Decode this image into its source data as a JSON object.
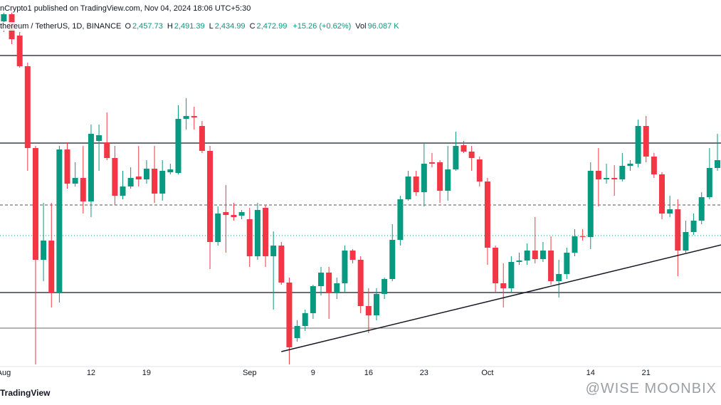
{
  "header": {
    "published": "nCrypto1 published on TradingView.com, Nov 04, 2024 18:06 UTC+5:30",
    "symbol": "thereum / TetherUS, 1D, BINANCE",
    "legend": [
      {
        "label": "O",
        "value": "2,457.73"
      },
      {
        "label": "H",
        "value": "2,491.39"
      },
      {
        "label": "L",
        "value": "2,434.99"
      },
      {
        "label": "C",
        "value": "2,472.99"
      },
      {
        "label": "",
        "value": "+15.26 (+0.62%)"
      },
      {
        "label": "Vol",
        "value": "96.087 K"
      }
    ]
  },
  "footer": {
    "brand": "TradingView",
    "watermark": "@WISE MOONBIX"
  },
  "chart_data": {
    "type": "candlestick",
    "categories": [
      "Aug",
      null,
      null,
      null,
      null,
      null,
      null,
      null,
      null,
      null,
      null,
      "12",
      null,
      null,
      null,
      null,
      null,
      null,
      "19",
      null,
      null,
      null,
      null,
      null,
      null,
      null,
      null,
      null,
      null,
      null,
      null,
      "Sep",
      null,
      null,
      null,
      null,
      null,
      null,
      null,
      "9",
      null,
      null,
      null,
      null,
      null,
      null,
      "16",
      null,
      null,
      null,
      null,
      null,
      null,
      "23",
      null,
      null,
      null,
      null,
      null,
      null,
      null,
      "Oct",
      null,
      null,
      null,
      null,
      null,
      null,
      null,
      null,
      null,
      null,
      null,
      null,
      "14",
      null,
      null,
      null,
      null,
      null,
      null,
      "21",
      null,
      null,
      null,
      null,
      null,
      null,
      null,
      null,
      null
    ],
    "open": [
      3040,
      3060,
      3000,
      2914,
      2684,
      2370,
      2424,
      2278,
      2680,
      2584,
      2600,
      2534,
      2704,
      2700,
      2656,
      2550,
      2576,
      2604,
      2596,
      2626,
      2556,
      2616,
      2614,
      2766,
      2774,
      2746,
      2676,
      2420,
      2504,
      2496,
      2494,
      2484,
      2380,
      2516,
      2380,
      2410,
      2306,
      2150,
      2184,
      2220,
      2296,
      2334,
      2276,
      2304,
      2396,
      2370,
      2240,
      2214,
      2274,
      2316,
      2426,
      2540,
      2604,
      2560,
      2644,
      2644,
      2564,
      2624,
      2692,
      2674,
      2652,
      2590,
      2404,
      2304,
      2290,
      2364,
      2368,
      2396,
      2372,
      2396,
      2310,
      2330,
      2390,
      2436,
      2434,
      2620,
      2596,
      2600,
      2596,
      2634,
      2640,
      2746,
      2660,
      2610,
      2500,
      2512,
      2396,
      2448,
      2480,
      2546,
      2628
    ],
    "high": [
      3080,
      3080,
      3010,
      2924,
      2690,
      2530,
      2530,
      2690,
      2700,
      2644,
      2690,
      2750,
      2750,
      2784,
      2690,
      2620,
      2630,
      2690,
      2650,
      2690,
      2650,
      2640,
      2804,
      2824,
      2800,
      2760,
      2690,
      2520,
      2580,
      2530,
      2510,
      2516,
      2530,
      2524,
      2450,
      2420,
      2320,
      2200,
      2230,
      2300,
      2350,
      2350,
      2320,
      2410,
      2400,
      2380,
      2290,
      2290,
      2320,
      2470,
      2550,
      2620,
      2620,
      2700,
      2670,
      2650,
      2690,
      2730,
      2704,
      2690,
      2660,
      2600,
      2410,
      2360,
      2380,
      2390,
      2416,
      2490,
      2420,
      2436,
      2370,
      2404,
      2456,
      2456,
      2644,
      2684,
      2640,
      2636,
      2670,
      2650,
      2764,
      2774,
      2670,
      2616,
      2550,
      2540,
      2480,
      2500,
      2560,
      2684,
      2724
    ],
    "low": [
      3010,
      2976,
      2910,
      2620,
      2076,
      2310,
      2236,
      2250,
      2570,
      2576,
      2500,
      2490,
      2620,
      2650,
      2524,
      2540,
      2570,
      2576,
      2584,
      2530,
      2536,
      2610,
      2610,
      2736,
      2736,
      2670,
      2344,
      2410,
      2390,
      2480,
      2484,
      2350,
      2370,
      2350,
      2230,
      2300,
      2076,
      2140,
      2170,
      2204,
      2270,
      2204,
      2260,
      2280,
      2360,
      2220,
      2164,
      2200,
      2260,
      2310,
      2410,
      2536,
      2550,
      2520,
      2630,
      2530,
      2536,
      2620,
      2670,
      2620,
      2576,
      2356,
      2280,
      2236,
      2280,
      2356,
      2356,
      2360,
      2364,
      2300,
      2264,
      2316,
      2380,
      2424,
      2400,
      2520,
      2584,
      2550,
      2590,
      2620,
      2630,
      2644,
      2600,
      2484,
      2490,
      2324,
      2390,
      2440,
      2470,
      2540,
      2620
    ],
    "close": [
      3060,
      2990,
      2914,
      2684,
      2370,
      2424,
      2278,
      2680,
      2584,
      2600,
      2534,
      2724,
      2720,
      2656,
      2550,
      2576,
      2600,
      2596,
      2626,
      2556,
      2620,
      2624,
      2766,
      2774,
      2770,
      2676,
      2420,
      2500,
      2496,
      2490,
      2504,
      2380,
      2510,
      2380,
      2410,
      2306,
      2124,
      2184,
      2220,
      2296,
      2334,
      2276,
      2304,
      2396,
      2370,
      2240,
      2214,
      2274,
      2316,
      2426,
      2540,
      2604,
      2560,
      2640,
      2640,
      2564,
      2624,
      2690,
      2674,
      2656,
      2590,
      2404,
      2304,
      2290,
      2364,
      2368,
      2396,
      2372,
      2396,
      2310,
      2330,
      2390,
      2436,
      2434,
      2620,
      2596,
      2600,
      2596,
      2634,
      2640,
      2746,
      2660,
      2610,
      2500,
      2512,
      2396,
      2448,
      2480,
      2546,
      2628,
      2650
    ],
    "up_color": "#089981",
    "down_color": "#f23645",
    "ylim": [
      2070,
      3100
    ],
    "levels": [
      {
        "value": 2944,
        "style": "solid",
        "color": "#131722"
      },
      {
        "value": 2698,
        "style": "solid",
        "color": "#131722"
      },
      {
        "value": 2524,
        "style": "dashed",
        "color": "#555555"
      },
      {
        "value": 2438,
        "style": "dotted",
        "color": "#089981"
      },
      {
        "value": 2278,
        "style": "solid",
        "color": "#131722"
      },
      {
        "value": 2178,
        "style": "solid",
        "color": "#888888"
      }
    ],
    "trendline": {
      "x": [
        35,
        90.5
      ],
      "values": [
        2112,
        2412
      ],
      "color": "#131722"
    }
  }
}
